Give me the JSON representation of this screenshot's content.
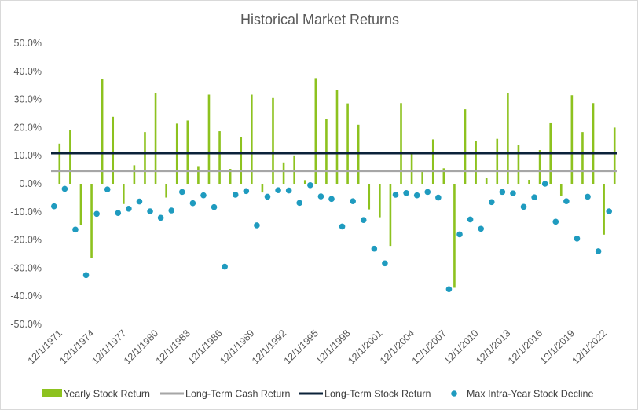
{
  "chart_data": {
    "type": "bar",
    "title": "Historical Market Returns",
    "xlabel": "",
    "ylabel": "",
    "ylim": [
      -50,
      50
    ],
    "y_ticks": [
      "50.0%",
      "40.0%",
      "30.0%",
      "20.0%",
      "10.0%",
      "0.0%",
      "-10.0%",
      "-20.0%",
      "-30.0%",
      "-40.0%",
      "-50.0%"
    ],
    "y_tick_values": [
      50,
      40,
      30,
      20,
      10,
      0,
      -10,
      -20,
      -30,
      -40,
      -50
    ],
    "x_tick_labels": [
      "12/1/1971",
      "12/1/1974",
      "12/1/1977",
      "12/1/1980",
      "12/1/1983",
      "12/1/1986",
      "12/1/1989",
      "12/1/1992",
      "12/1/1995",
      "12/1/1998",
      "12/1/2001",
      "12/1/2004",
      "12/1/2007",
      "12/1/2010",
      "12/1/2013",
      "12/1/2016",
      "12/1/2019",
      "12/1/2022"
    ],
    "categories": [
      "1971",
      "1972",
      "1973",
      "1974",
      "1975",
      "1976",
      "1977",
      "1978",
      "1979",
      "1980",
      "1981",
      "1982",
      "1983",
      "1984",
      "1985",
      "1986",
      "1987",
      "1988",
      "1989",
      "1990",
      "1991",
      "1992",
      "1993",
      "1994",
      "1995",
      "1996",
      "1997",
      "1998",
      "1999",
      "2000",
      "2001",
      "2002",
      "2003",
      "2004",
      "2005",
      "2006",
      "2007",
      "2008",
      "2009",
      "2010",
      "2011",
      "2012",
      "2013",
      "2014",
      "2015",
      "2016",
      "2017",
      "2018",
      "2019",
      "2020",
      "2021",
      "2022",
      "2023"
    ],
    "series": [
      {
        "name": "Yearly Stock Return",
        "type": "bar",
        "color": "#8dc21f",
        "values": [
          14.3,
          19.0,
          -14.7,
          -26.5,
          37.2,
          23.8,
          -7.2,
          6.6,
          18.4,
          32.4,
          -4.9,
          21.4,
          22.5,
          6.3,
          31.7,
          18.7,
          5.3,
          16.6,
          31.7,
          -3.1,
          30.5,
          7.6,
          10.1,
          1.3,
          37.6,
          23.0,
          33.4,
          28.6,
          21.0,
          -9.1,
          -11.9,
          -22.1,
          28.7,
          10.9,
          4.9,
          15.8,
          5.5,
          -37.0,
          26.5,
          15.1,
          2.1,
          16.0,
          32.4,
          13.7,
          1.4,
          12.0,
          21.8,
          -4.4,
          31.5,
          18.4,
          28.7,
          -18.1,
          20.0
        ]
      },
      {
        "name": "Long-Term Cash Return",
        "type": "line",
        "color": "#a6a6a6",
        "value": 4.5
      },
      {
        "name": "Long-Term Stock Return",
        "type": "line",
        "color": "#0b2239",
        "value": 10.9
      },
      {
        "name": "Max Intra-Year Stock Decline",
        "type": "scatter",
        "color": "#1f9bbf",
        "values": [
          -8.0,
          -1.8,
          -16.3,
          -32.5,
          -10.7,
          -2.0,
          -10.4,
          -8.9,
          -6.3,
          -9.8,
          -12.1,
          -9.5,
          -2.9,
          -6.9,
          -4.1,
          -8.3,
          -29.5,
          -3.9,
          -2.6,
          -14.8,
          -4.6,
          -2.3,
          -2.4,
          -6.8,
          -0.5,
          -4.5,
          -5.4,
          -15.2,
          -6.2,
          -12.9,
          -23.1,
          -28.3,
          -3.9,
          -3.3,
          -4.1,
          -2.9,
          -4.9,
          -37.5,
          -18.0,
          -12.7,
          -16.0,
          -6.5,
          -2.9,
          -3.4,
          -8.2,
          -4.8,
          0.0,
          -13.5,
          -6.2,
          -19.5,
          -4.6,
          -24.0,
          -9.8
        ]
      }
    ],
    "legend_position": "bottom",
    "legend": [
      "Yearly Stock Return",
      "Long-Term Cash Return",
      "Long-Term Stock Return",
      "Max Intra-Year Stock Decline"
    ]
  }
}
